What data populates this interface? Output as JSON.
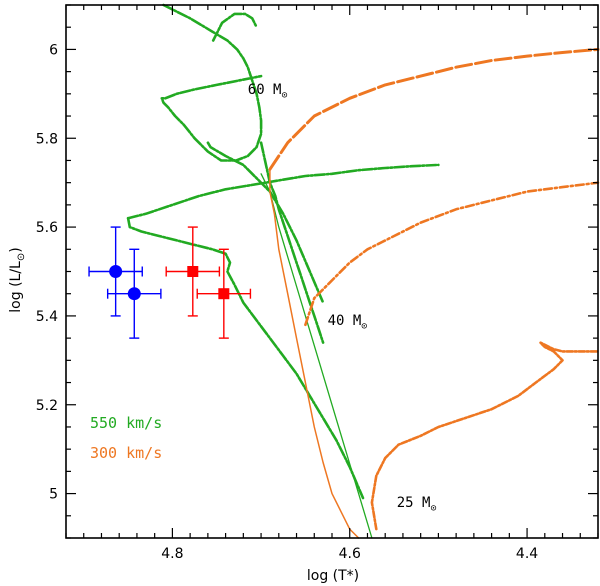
{
  "chart_data": {
    "type": "scatter",
    "title": "",
    "xlabel": "log (T*)",
    "ylabel_main": "log (L/L",
    "ylabel_sun": "⊙",
    "ylabel_close": ")",
    "xlim": [
      4.92,
      4.32
    ],
    "ylim": [
      4.9,
      6.1
    ],
    "xticks": [
      4.8,
      4.6,
      4.4
    ],
    "xtick_labels": [
      "4.8",
      "4.6",
      "4.4"
    ],
    "yticks": [
      5.0,
      5.2,
      5.4,
      5.6,
      5.8,
      6.0
    ],
    "ytick_labels": [
      "5",
      "5.2",
      "5.4",
      "5.6",
      "5.8",
      "6"
    ],
    "mass_labels": [
      {
        "text": "60 M",
        "sun": "⊙",
        "x": 4.715,
        "y": 5.9
      },
      {
        "text": "40 M",
        "sun": "⊙",
        "x": 4.625,
        "y": 5.38
      },
      {
        "text": "25 M",
        "sun": "⊙",
        "x": 4.547,
        "y": 4.97
      }
    ],
    "legend": [
      {
        "label": "550 km/s",
        "color": "#22aa22"
      },
      {
        "label": "300 km/s",
        "color": "#ee7722"
      }
    ],
    "points": [
      {
        "name": "blue-circle-1",
        "x": 4.864,
        "y": 5.5,
        "xerr": 0.03,
        "yerr": 0.1,
        "color": "#0000ff",
        "marker": "circle"
      },
      {
        "name": "blue-circle-2",
        "x": 4.843,
        "y": 5.45,
        "xerr": 0.03,
        "yerr": 0.1,
        "color": "#0000ff",
        "marker": "circle"
      },
      {
        "name": "red-square-1",
        "x": 4.777,
        "y": 5.5,
        "xerr": 0.03,
        "yerr": 0.1,
        "color": "#ff0000",
        "marker": "square"
      },
      {
        "name": "red-square-2",
        "x": 4.742,
        "y": 5.45,
        "xerr": 0.03,
        "yerr": 0.1,
        "color": "#ff0000",
        "marker": "square"
      }
    ],
    "series": [
      {
        "name": "60-msun-550kms-main",
        "color": "#22aa22",
        "width": 2.6,
        "dash": "10 2 2 2",
        "x": [
          4.7,
          4.69,
          4.684,
          4.68,
          4.675,
          4.67,
          4.665,
          4.66,
          4.655,
          4.65,
          4.645,
          4.64,
          4.635,
          4.63
        ],
        "y": [
          5.79,
          5.7,
          5.67,
          5.64,
          5.61,
          5.58,
          5.55,
          5.52,
          5.49,
          5.46,
          5.43,
          5.4,
          5.37,
          5.34
        ]
      },
      {
        "name": "60-msun-550kms-loops",
        "color": "#22aa22",
        "width": 2.6,
        "dash": "10 2 2 2",
        "x": [
          4.81,
          4.78,
          4.755,
          4.738,
          4.727,
          4.72,
          4.715,
          4.71,
          4.705,
          4.702,
          4.7,
          4.7,
          4.705,
          4.715,
          4.728,
          4.745,
          4.76,
          4.775,
          4.787,
          4.797,
          4.805,
          4.81,
          4.812,
          4.808,
          4.795,
          4.775,
          4.75,
          4.725,
          4.7
        ],
        "y": [
          6.1,
          6.07,
          6.04,
          6.02,
          6.0,
          5.98,
          5.96,
          5.93,
          5.9,
          5.87,
          5.84,
          5.81,
          5.78,
          5.76,
          5.75,
          5.75,
          5.77,
          5.8,
          5.83,
          5.85,
          5.87,
          5.88,
          5.89,
          5.89,
          5.9,
          5.91,
          5.92,
          5.93,
          5.94
        ]
      },
      {
        "name": "60-msun-550kms-spike",
        "color": "#22aa22",
        "width": 2.6,
        "dash": "10 2 2 2",
        "x": [
          4.754,
          4.744,
          4.73,
          4.718,
          4.71,
          4.705
        ],
        "y": [
          6.02,
          6.06,
          6.08,
          6.08,
          6.07,
          6.05
        ]
      },
      {
        "name": "60-msun-550kms-rightbranch",
        "color": "#22aa22",
        "width": 2.6,
        "dash": "10 2 2 2",
        "x": [
          4.76,
          4.757,
          4.74,
          4.72,
          4.705,
          4.69,
          4.675,
          4.66,
          4.645,
          4.63
        ],
        "y": [
          5.79,
          5.78,
          5.76,
          5.74,
          5.71,
          5.68,
          5.63,
          5.57,
          5.5,
          5.43
        ]
      },
      {
        "name": "40-msun-550kms-track",
        "color": "#22aa22",
        "width": 2.6,
        "dash": "10 2 2 2",
        "x": [
          4.85,
          4.83,
          4.8,
          4.77,
          4.74,
          4.71,
          4.68,
          4.65,
          4.62,
          4.59,
          4.56,
          4.53,
          4.5
        ],
        "y": [
          5.62,
          5.63,
          5.65,
          5.67,
          5.685,
          5.695,
          5.705,
          5.715,
          5.72,
          5.728,
          5.733,
          5.737,
          5.74
        ]
      },
      {
        "name": "40-msun-550kms-lower",
        "color": "#22aa22",
        "width": 2.6,
        "dash": "10 2 2 2",
        "x": [
          4.85,
          4.848,
          4.835,
          4.815,
          4.795,
          4.775,
          4.755,
          4.74,
          4.735,
          4.738,
          4.73,
          4.72,
          4.705,
          4.69,
          4.675,
          4.66,
          4.645,
          4.63,
          4.615,
          4.6,
          4.585
        ],
        "y": [
          5.62,
          5.6,
          5.59,
          5.58,
          5.57,
          5.56,
          5.55,
          5.54,
          5.52,
          5.5,
          5.47,
          5.43,
          5.39,
          5.35,
          5.31,
          5.27,
          5.22,
          5.17,
          5.12,
          5.06,
          4.99
        ]
      },
      {
        "name": "60-msun-550kms-thin",
        "color": "#22aa22",
        "width": 1.3,
        "dash": "",
        "x": [
          4.7,
          4.69,
          4.68,
          4.665,
          4.65,
          4.635,
          4.62,
          4.605,
          4.59,
          4.575
        ],
        "y": [
          5.72,
          5.68,
          5.6,
          5.5,
          5.4,
          5.3,
          5.2,
          5.1,
          5.0,
          4.9
        ]
      },
      {
        "name": "60-msun-300kms-upper",
        "color": "#ee7722",
        "width": 3.0,
        "dash": "16 4",
        "x": [
          4.69,
          4.67,
          4.64,
          4.6,
          4.56,
          4.52,
          4.48,
          4.44,
          4.4,
          4.36,
          4.32
        ],
        "y": [
          5.73,
          5.79,
          5.85,
          5.89,
          5.92,
          5.94,
          5.96,
          5.975,
          5.985,
          5.993,
          6.0
        ]
      },
      {
        "name": "60-msun-300kms-lower",
        "color": "#ee7722",
        "width": 1.5,
        "dash": "",
        "x": [
          4.69,
          4.69,
          4.685,
          4.68,
          4.67,
          4.66,
          4.65,
          4.64,
          4.63,
          4.62,
          4.61,
          4.6,
          4.59
        ],
        "y": [
          5.73,
          5.68,
          5.63,
          5.55,
          5.45,
          5.35,
          5.25,
          5.15,
          5.07,
          5.0,
          4.96,
          4.92,
          4.9
        ]
      },
      {
        "name": "40-msun-300kms-track",
        "color": "#ee7722",
        "width": 2.6,
        "dash": "8 3 2 3",
        "x": [
          4.65,
          4.645,
          4.64,
          4.63,
          4.615,
          4.6,
          4.58,
          4.55,
          4.52,
          4.48,
          4.44,
          4.4,
          4.36,
          4.32
        ],
        "y": [
          5.38,
          5.41,
          5.44,
          5.46,
          5.49,
          5.52,
          5.55,
          5.58,
          5.61,
          5.64,
          5.66,
          5.68,
          5.69,
          5.7
        ]
      },
      {
        "name": "25-msun-300kms-track",
        "color": "#ee7722",
        "width": 2.6,
        "dash": "6 2 2 2",
        "x": [
          4.57,
          4.575,
          4.57,
          4.56,
          4.545,
          4.52,
          4.5,
          4.47,
          4.44,
          4.41,
          4.39,
          4.37,
          4.36,
          4.37,
          4.38,
          4.385,
          4.38,
          4.37,
          4.36,
          4.34,
          4.32
        ],
        "y": [
          4.92,
          4.98,
          5.04,
          5.08,
          5.11,
          5.13,
          5.15,
          5.17,
          5.19,
          5.22,
          5.25,
          5.28,
          5.3,
          5.32,
          5.33,
          5.34,
          5.335,
          5.325,
          5.32,
          5.32,
          5.32
        ]
      }
    ]
  }
}
